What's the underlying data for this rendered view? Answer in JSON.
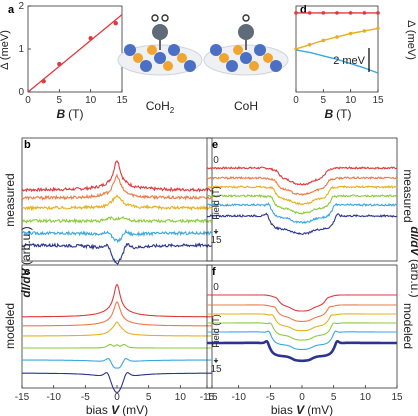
{
  "chart_data": [
    {
      "panel": "a",
      "type": "scatter",
      "ylabel": "Δ (meV)",
      "xlabel_symbol": "B",
      "xlabel_unit": "(T)",
      "xticks": [
        0,
        5,
        10,
        15
      ],
      "yticks": [
        0,
        1,
        2
      ],
      "xlim": [
        0,
        15
      ],
      "ylim": [
        0,
        2
      ],
      "x": [
        2.5,
        5,
        10,
        14
      ],
      "y": [
        0.25,
        0.65,
        1.25,
        1.6
      ],
      "fit": [
        [
          0,
          0
        ],
        [
          15,
          1.8
        ]
      ],
      "color": "#e0393e"
    },
    {
      "panel": "d",
      "type": "line",
      "ylabel": "Δ (meV)",
      "xlabel_symbol": "B",
      "xlabel_unit": "(T)",
      "xticks": [
        0,
        5,
        10,
        15
      ],
      "xlim": [
        0,
        15
      ],
      "scalebar": "2 meV",
      "series": [
        {
          "color": "#e0393e",
          "x": [
            0,
            2.5,
            5,
            7.5,
            10,
            12.5,
            15
          ],
          "y": [
            9.2,
            9.2,
            9.2,
            9.2,
            9.2,
            9.2,
            9.2
          ]
        },
        {
          "color": "#e8b020",
          "x": [
            0,
            2.5,
            5,
            7.5,
            10,
            12.5,
            15
          ],
          "y": [
            5.0,
            5.5,
            6.0,
            6.4,
            6.8,
            7.1,
            7.4
          ]
        },
        {
          "color": "#3aa8e0",
          "x": [
            0,
            2.5,
            5,
            7.5,
            10,
            12.5,
            15
          ],
          "y": [
            4.9,
            4.6,
            4.2,
            3.8,
            3.3,
            2.8,
            2.2
          ]
        }
      ]
    },
    {
      "panel": "b",
      "type": "line",
      "ylabel": "measured",
      "molecule": "CoH2",
      "xlim": [
        -15,
        15
      ],
      "xticks": [
        -15,
        -10,
        -5,
        0,
        5,
        10,
        15
      ]
    },
    {
      "panel": "c",
      "type": "line",
      "ylabel": "modeled",
      "xlim": [
        -15,
        15
      ],
      "xticks": [
        -15,
        -10,
        -5,
        0,
        5,
        10,
        15
      ],
      "xlabel_symbol": "V",
      "xlabel_prefix": "bias ",
      "xlabel_unit": "(mV)"
    },
    {
      "panel": "e",
      "type": "line",
      "ylabel": "measured",
      "molecule": "CoH",
      "field_label": "Field (T)",
      "field_range": [
        "0",
        "15"
      ],
      "xlim": [
        -15,
        15
      ],
      "xticks": [
        -15,
        -10,
        -5,
        0,
        5,
        10,
        15
      ]
    },
    {
      "panel": "f",
      "type": "line",
      "ylabel": "modeled",
      "field_label": "Field (T)",
      "field_range": [
        "0",
        "15"
      ],
      "xlim": [
        -15,
        15
      ],
      "xticks": [
        -15,
        -10,
        -5,
        0,
        5,
        10,
        15
      ],
      "xlabel_symbol": "V",
      "xlabel_prefix": "bias ",
      "xlabel_unit": "(mV)"
    }
  ],
  "series_colors": [
    "#e0393e",
    "#ef7a45",
    "#e8b020",
    "#8ccb3a",
    "#3aa8e0",
    "#2b3590"
  ],
  "molecules": {
    "left": {
      "label": "CoH",
      "sub": "2"
    },
    "right": {
      "label": "CoH",
      "sub": ""
    }
  },
  "shared_ylabel": {
    "main": "dI/dV",
    "unit": " (arb.u.)"
  }
}
